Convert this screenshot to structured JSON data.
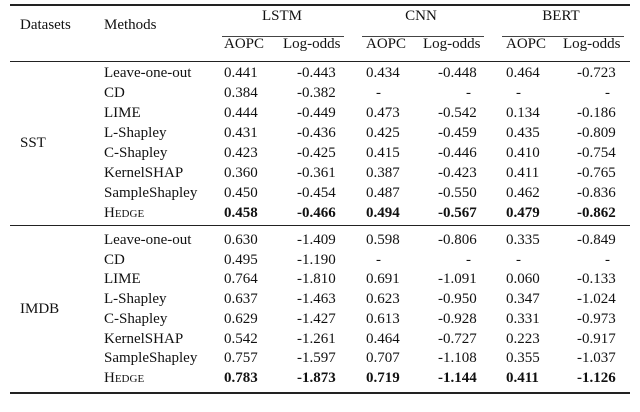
{
  "table": {
    "headers": {
      "datasets": "Datasets",
      "methods": "Methods",
      "models": [
        "LSTM",
        "CNN",
        "BERT"
      ],
      "metrics": [
        "AOPC",
        "Log-odds",
        "AOPC",
        "Log-odds",
        "AOPC",
        "Log-odds"
      ]
    },
    "groups": [
      {
        "dataset": "SST",
        "rows": [
          {
            "method": "Leave-one-out",
            "values": [
              "0.441",
              "-0.443",
              "0.434",
              "-0.448",
              "0.464",
              "-0.723"
            ]
          },
          {
            "method": "CD",
            "values": [
              "0.384",
              "-0.382",
              "-",
              "-",
              "-",
              "-"
            ]
          },
          {
            "method": "LIME",
            "values": [
              "0.444",
              "-0.449",
              "0.473",
              "-0.542",
              "0.134",
              "-0.186"
            ]
          },
          {
            "method": "L-Shapley",
            "values": [
              "0.431",
              "-0.436",
              "0.425",
              "-0.459",
              "0.435",
              "-0.809"
            ]
          },
          {
            "method": "C-Shapley",
            "values": [
              "0.423",
              "-0.425",
              "0.415",
              "-0.446",
              "0.410",
              "-0.754"
            ]
          },
          {
            "method": "KernelSHAP",
            "values": [
              "0.360",
              "-0.361",
              "0.387",
              "-0.423",
              "0.411",
              "-0.765"
            ]
          },
          {
            "method": "SampleShapley",
            "values": [
              "0.450",
              "-0.454",
              "0.487",
              "-0.550",
              "0.462",
              "-0.836"
            ]
          },
          {
            "method": "Hedge",
            "values": [
              "0.458",
              "-0.466",
              "0.494",
              "-0.567",
              "0.479",
              "-0.862"
            ],
            "bold": true
          }
        ]
      },
      {
        "dataset": "IMDB",
        "rows": [
          {
            "method": "Leave-one-out",
            "values": [
              "0.630",
              "-1.409",
              "0.598",
              "-0.806",
              "0.335",
              "-0.849"
            ]
          },
          {
            "method": "CD",
            "values": [
              "0.495",
              "-1.190",
              "-",
              "-",
              "-",
              "-"
            ]
          },
          {
            "method": "LIME",
            "values": [
              "0.764",
              "-1.810",
              "0.691",
              "-1.091",
              "0.060",
              "-0.133"
            ]
          },
          {
            "method": "L-Shapley",
            "values": [
              "0.637",
              "-1.463",
              "0.623",
              "-0.950",
              "0.347",
              "-1.024"
            ]
          },
          {
            "method": "C-Shapley",
            "values": [
              "0.629",
              "-1.427",
              "0.613",
              "-0.928",
              "0.331",
              "-0.973"
            ]
          },
          {
            "method": "KernelSHAP",
            "values": [
              "0.542",
              "-1.261",
              "0.464",
              "-0.727",
              "0.223",
              "-0.917"
            ]
          },
          {
            "method": "SampleShapley",
            "values": [
              "0.757",
              "-1.597",
              "0.707",
              "-1.108",
              "0.355",
              "-1.037"
            ]
          },
          {
            "method": "Hedge",
            "values": [
              "0.783",
              "-1.873",
              "0.719",
              "-1.144",
              "0.411",
              "-1.126"
            ],
            "bold": true
          }
        ]
      }
    ]
  }
}
